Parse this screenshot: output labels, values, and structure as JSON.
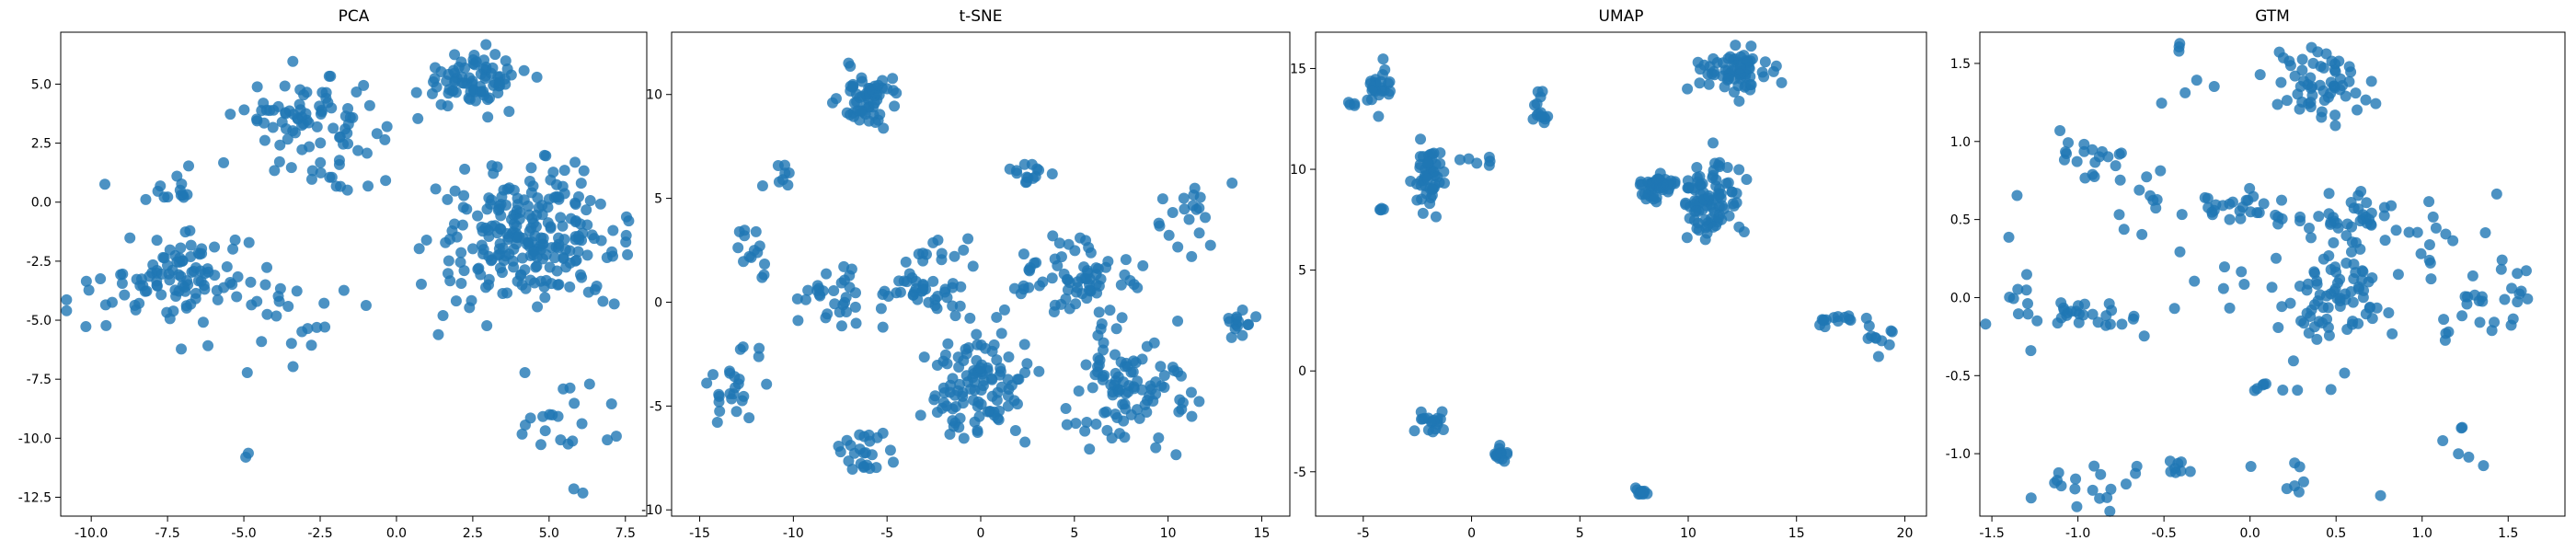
{
  "chart_data": [
    {
      "type": "scatter",
      "title": "PCA",
      "xlim": [
        -11,
        8.2
      ],
      "ylim": [
        -13.3,
        7.2
      ],
      "xticks": [
        -10.0,
        -7.5,
        -5.0,
        -2.5,
        0.0,
        2.5,
        5.0,
        7.5
      ],
      "yticks": [
        5.0,
        2.5,
        0.0,
        -2.5,
        -5.0,
        -7.5,
        -10.0,
        -12.5
      ],
      "point_color": "#1f77b4",
      "clusters": [
        {
          "cx": 2.5,
          "cy": 5.2,
          "sx": 0.9,
          "sy": 0.6,
          "n": 80
        },
        {
          "cx": -2.8,
          "cy": 3.5,
          "sx": 1.1,
          "sy": 0.9,
          "n": 80
        },
        {
          "cx": 4.3,
          "cy": -1.6,
          "sx": 1.5,
          "sy": 1.4,
          "n": 240
        },
        {
          "cx": -6.8,
          "cy": -3.0,
          "sx": 1.0,
          "sy": 0.8,
          "n": 75
        },
        {
          "cx": -9.0,
          "cy": -3.8,
          "sx": 1.2,
          "sy": 1.1,
          "n": 25
        },
        {
          "cx": -3.5,
          "cy": -4.8,
          "sx": 1.6,
          "sy": 1.0,
          "n": 25
        },
        {
          "cx": 5.3,
          "cy": -9.2,
          "sx": 1.0,
          "sy": 1.0,
          "n": 22
        },
        {
          "cx": -7.8,
          "cy": 0.6,
          "sx": 1.0,
          "sy": 0.5,
          "n": 14
        },
        {
          "cx": -4.8,
          "cy": -10.8,
          "sx": 0.2,
          "sy": 0.2,
          "n": 2
        },
        {
          "cx": 6.0,
          "cy": -12.3,
          "sx": 0.05,
          "sy": 0.05,
          "n": 1
        },
        {
          "cx": -1.5,
          "cy": 1.4,
          "sx": 1.3,
          "sy": 0.9,
          "n": 12
        }
      ]
    },
    {
      "type": "scatter",
      "title": "t-SNE",
      "xlim": [
        -16.5,
        16.5
      ],
      "ylim": [
        -10.3,
        13.0
      ],
      "xticks": [
        -15,
        -10,
        -5,
        0,
        5,
        10,
        15
      ],
      "yticks": [
        10,
        5,
        0,
        -5,
        -10
      ],
      "point_color": "#1f77b4",
      "clusters": [
        {
          "cx": -6.0,
          "cy": 9.8,
          "sx": 0.8,
          "sy": 0.8,
          "n": 60
        },
        {
          "cx": 0.0,
          "cy": -4.2,
          "sx": 1.3,
          "sy": 1.3,
          "n": 110
        },
        {
          "cx": 8.0,
          "cy": -4.0,
          "sx": 1.5,
          "sy": 1.6,
          "n": 100
        },
        {
          "cx": 5.5,
          "cy": 1.2,
          "sx": 1.3,
          "sy": 0.9,
          "n": 60
        },
        {
          "cx": -3.3,
          "cy": 0.4,
          "sx": 1.2,
          "sy": 0.6,
          "n": 40
        },
        {
          "cx": -8.0,
          "cy": 0.0,
          "sx": 0.9,
          "sy": 0.8,
          "n": 30
        },
        {
          "cx": -6.3,
          "cy": -7.3,
          "sx": 0.8,
          "sy": 0.5,
          "n": 25
        },
        {
          "cx": -13.2,
          "cy": -4.0,
          "sx": 0.9,
          "sy": 1.2,
          "n": 25
        },
        {
          "cx": 2.4,
          "cy": 6.2,
          "sx": 0.6,
          "sy": 0.3,
          "n": 14
        },
        {
          "cx": 11.0,
          "cy": 4.0,
          "sx": 1.0,
          "sy": 0.9,
          "n": 20
        },
        {
          "cx": 14.0,
          "cy": -0.9,
          "sx": 0.5,
          "sy": 0.4,
          "n": 14
        },
        {
          "cx": -10.5,
          "cy": 6.2,
          "sx": 0.4,
          "sy": 0.3,
          "n": 8
        },
        {
          "cx": -12.0,
          "cy": 2.6,
          "sx": 0.6,
          "sy": 0.7,
          "n": 14
        },
        {
          "cx": -2.0,
          "cy": 2.5,
          "sx": 1.0,
          "sy": 0.5,
          "n": 12
        },
        {
          "cx": 2.5,
          "cy": 0.8,
          "sx": 0.8,
          "sy": 0.8,
          "n": 10
        }
      ]
    },
    {
      "type": "scatter",
      "title": "UMAP",
      "xlim": [
        -7.2,
        21.0
      ],
      "ylim": [
        -7.2,
        16.8
      ],
      "xticks": [
        -5,
        0,
        5,
        10,
        15,
        20
      ],
      "yticks": [
        15,
        10,
        5,
        0,
        -5
      ],
      "point_color": "#1f77b4",
      "clusters": [
        {
          "cx": 12.0,
          "cy": 14.8,
          "sx": 0.8,
          "sy": 0.5,
          "n": 70
        },
        {
          "cx": 11.0,
          "cy": 8.3,
          "sx": 0.6,
          "sy": 1.0,
          "n": 90
        },
        {
          "cx": 8.5,
          "cy": 9.2,
          "sx": 0.5,
          "sy": 0.4,
          "n": 50
        },
        {
          "cx": -2.0,
          "cy": 9.6,
          "sx": 0.35,
          "sy": 0.9,
          "n": 50
        },
        {
          "cx": -4.3,
          "cy": 14.0,
          "sx": 0.3,
          "sy": 0.6,
          "n": 25
        },
        {
          "cx": -5.5,
          "cy": 13.2,
          "sx": 0.15,
          "sy": 0.1,
          "n": 4
        },
        {
          "cx": -4.2,
          "cy": 8.0,
          "sx": 0.2,
          "sy": 0.1,
          "n": 4
        },
        {
          "cx": 3.2,
          "cy": 12.9,
          "sx": 0.2,
          "sy": 0.5,
          "n": 14
        },
        {
          "cx": 0.3,
          "cy": 10.3,
          "sx": 0.4,
          "sy": 0.15,
          "n": 6
        },
        {
          "cx": -1.8,
          "cy": -2.7,
          "sx": 0.4,
          "sy": 0.5,
          "n": 18
        },
        {
          "cx": 1.2,
          "cy": -4.0,
          "sx": 0.3,
          "sy": 0.25,
          "n": 14
        },
        {
          "cx": 7.9,
          "cy": -6.0,
          "sx": 0.2,
          "sy": 0.15,
          "n": 12
        },
        {
          "cx": 16.5,
          "cy": 2.6,
          "sx": 0.8,
          "sy": 0.2,
          "n": 14
        },
        {
          "cx": 18.7,
          "cy": 1.6,
          "sx": 0.4,
          "sy": 0.4,
          "n": 10
        }
      ]
    },
    {
      "type": "scatter",
      "title": "GTM",
      "xlim": [
        -1.57,
        1.83
      ],
      "ylim": [
        -1.4,
        1.7
      ],
      "xticks": [
        -1.5,
        -1.0,
        -0.5,
        0.0,
        0.5,
        1.0,
        1.5
      ],
      "yticks": [
        1.5,
        1.0,
        0.5,
        0.0,
        -0.5,
        -1.0
      ],
      "point_color": "#1f77b4",
      "clusters": [
        {
          "cx": 0.4,
          "cy": 1.35,
          "sx": 0.15,
          "sy": 0.12,
          "n": 60
        },
        {
          "cx": 0.5,
          "cy": 0.0,
          "sx": 0.17,
          "sy": 0.19,
          "n": 80
        },
        {
          "cx": 0.6,
          "cy": 0.52,
          "sx": 0.16,
          "sy": 0.1,
          "n": 40
        },
        {
          "cx": -0.05,
          "cy": 0.58,
          "sx": 0.14,
          "sy": 0.06,
          "n": 25
        },
        {
          "cx": -0.9,
          "cy": -0.1,
          "sx": 0.15,
          "sy": 0.04,
          "n": 25
        },
        {
          "cx": -0.95,
          "cy": 0.9,
          "sx": 0.12,
          "sy": 0.1,
          "n": 18
        },
        {
          "cx": -0.9,
          "cy": -1.2,
          "sx": 0.15,
          "sy": 0.1,
          "n": 18
        },
        {
          "cx": -0.45,
          "cy": -1.08,
          "sx": 0.12,
          "sy": 0.02,
          "n": 8
        },
        {
          "cx": 1.25,
          "cy": -0.05,
          "sx": 0.1,
          "sy": 0.1,
          "n": 15
        },
        {
          "cx": 1.5,
          "cy": 0.1,
          "sx": 0.08,
          "sy": 0.25,
          "n": 15
        },
        {
          "cx": 1.0,
          "cy": 0.3,
          "sx": 0.1,
          "sy": 0.15,
          "n": 10
        },
        {
          "cx": -1.35,
          "cy": 0.0,
          "sx": 0.1,
          "sy": 0.25,
          "n": 12
        },
        {
          "cx": -0.6,
          "cy": 0.7,
          "sx": 0.1,
          "sy": 0.3,
          "n": 14
        },
        {
          "cx": 0.3,
          "cy": -1.2,
          "sx": 0.15,
          "sy": 0.1,
          "n": 8
        },
        {
          "cx": 1.3,
          "cy": -0.9,
          "sx": 0.1,
          "sy": 0.1,
          "n": 6
        },
        {
          "cx": -0.3,
          "cy": 1.45,
          "sx": 0.1,
          "sy": 0.1,
          "n": 6
        },
        {
          "cx": 0.1,
          "cy": -0.55,
          "sx": 0.2,
          "sy": 0.05,
          "n": 8
        },
        {
          "cx": -0.2,
          "cy": 0.1,
          "sx": 0.2,
          "sy": 0.2,
          "n": 10
        }
      ]
    }
  ]
}
